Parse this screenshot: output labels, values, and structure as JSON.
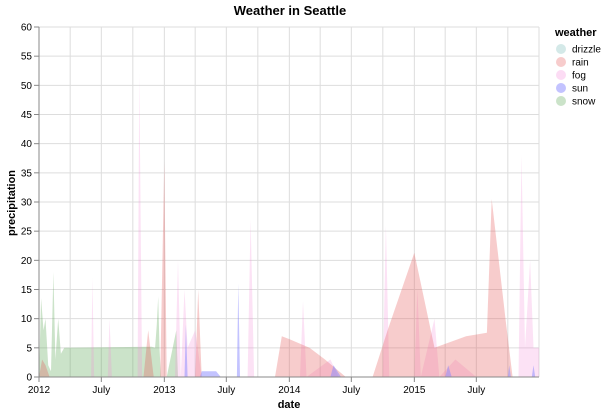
{
  "chart_data": {
    "type": "area",
    "title": "Weather in Seattle",
    "xlabel": "date",
    "ylabel": "precipitation",
    "ylim": [
      0,
      60
    ],
    "yticks": [
      0,
      5,
      10,
      15,
      20,
      25,
      30,
      35,
      40,
      45,
      50,
      55,
      60
    ],
    "xlim": [
      "2012-01-01",
      "2015-12-31"
    ],
    "xticks": [
      {
        "date": "2012-01-01",
        "label": "2012"
      },
      {
        "date": "2012-07-01",
        "label": "July"
      },
      {
        "date": "2013-01-01",
        "label": "2013"
      },
      {
        "date": "2013-07-01",
        "label": "July"
      },
      {
        "date": "2014-01-01",
        "label": "2014"
      },
      {
        "date": "2014-07-01",
        "label": "July"
      },
      {
        "date": "2015-01-01",
        "label": "2015"
      },
      {
        "date": "2015-07-01",
        "label": "July"
      }
    ],
    "grid": true,
    "legend_title": "weather",
    "legend_position": "right",
    "series": [
      {
        "name": "snow",
        "color": "#54a24b",
        "opacity": 0.3,
        "points": [
          [
            "2012-01-01",
            0
          ],
          [
            "2012-01-07",
            13.5
          ],
          [
            "2012-01-14",
            8
          ],
          [
            "2012-01-20",
            10
          ],
          [
            "2012-01-28",
            2
          ],
          [
            "2012-02-05",
            1
          ],
          [
            "2012-02-12",
            18
          ],
          [
            "2012-02-18",
            3
          ],
          [
            "2012-02-26",
            10
          ],
          [
            "2012-03-05",
            4
          ],
          [
            "2012-03-15",
            5
          ],
          [
            "2012-11-25",
            5.2
          ],
          [
            "2012-12-05",
            5
          ],
          [
            "2012-12-10",
            9
          ],
          [
            "2012-12-14",
            13.8
          ],
          [
            "2012-12-18",
            5
          ],
          [
            "2012-12-22",
            0
          ],
          [
            "2013-01-08",
            0
          ],
          [
            "2013-02-05",
            8
          ],
          [
            "2013-02-10",
            0
          ]
        ]
      },
      {
        "name": "fog",
        "color": "#f58bd9",
        "opacity": 0.25,
        "points": [
          [
            "2012-06-01",
            0
          ],
          [
            "2012-06-05",
            17
          ],
          [
            "2012-06-10",
            0
          ],
          [
            "2012-07-20",
            0
          ],
          [
            "2012-07-25",
            10
          ],
          [
            "2012-08-01",
            0
          ],
          [
            "2012-10-15",
            0
          ],
          [
            "2012-10-20",
            52
          ],
          [
            "2012-10-28",
            0
          ],
          [
            "2013-02-01",
            0
          ],
          [
            "2013-02-10",
            20
          ],
          [
            "2013-02-18",
            0
          ],
          [
            "2013-03-01",
            15
          ],
          [
            "2013-03-10",
            5
          ],
          [
            "2013-04-01",
            8
          ],
          [
            "2013-04-20",
            0
          ],
          [
            "2013-09-01",
            0
          ],
          [
            "2013-09-10",
            27
          ],
          [
            "2013-09-20",
            0
          ],
          [
            "2014-02-01",
            0
          ],
          [
            "2014-02-10",
            13
          ],
          [
            "2014-02-20",
            0
          ],
          [
            "2014-05-01",
            3
          ],
          [
            "2014-05-25",
            0
          ],
          [
            "2014-10-01",
            0
          ],
          [
            "2014-10-10",
            26
          ],
          [
            "2014-10-20",
            0
          ],
          [
            "2015-01-01",
            0
          ],
          [
            "2015-01-10",
            15
          ],
          [
            "2015-01-20",
            0
          ],
          [
            "2015-03-01",
            10
          ],
          [
            "2015-03-15",
            0
          ],
          [
            "2015-05-01",
            3
          ],
          [
            "2015-07-01",
            0
          ],
          [
            "2015-11-01",
            0
          ],
          [
            "2015-11-10",
            38
          ],
          [
            "2015-11-20",
            5
          ],
          [
            "2015-12-05",
            20
          ],
          [
            "2015-12-15",
            5
          ],
          [
            "2015-12-31",
            5
          ]
        ]
      },
      {
        "name": "rain",
        "color": "#e45756",
        "opacity": 0.3,
        "points": [
          [
            "2012-01-01",
            0
          ],
          [
            "2012-01-10",
            3
          ],
          [
            "2012-01-20",
            2
          ],
          [
            "2012-02-01",
            0
          ],
          [
            "2012-11-01",
            0
          ],
          [
            "2012-11-15",
            8
          ],
          [
            "2012-12-01",
            0
          ],
          [
            "2012-12-20",
            0
          ],
          [
            "2013-01-01",
            37
          ],
          [
            "2013-01-08",
            0
          ],
          [
            "2013-04-01",
            0
          ],
          [
            "2013-04-10",
            15
          ],
          [
            "2013-04-20",
            0
          ],
          [
            "2013-11-20",
            0
          ],
          [
            "2013-12-10",
            7
          ],
          [
            "2014-01-01",
            6.5
          ],
          [
            "2014-03-01",
            5
          ],
          [
            "2014-04-15",
            3
          ],
          [
            "2014-06-15",
            0
          ],
          [
            "2014-09-01",
            0
          ],
          [
            "2014-10-15",
            8
          ],
          [
            "2015-01-01",
            21.3
          ],
          [
            "2015-03-01",
            5
          ],
          [
            "2015-06-01",
            7
          ],
          [
            "2015-08-01",
            7.6
          ],
          [
            "2015-08-15",
            30.5
          ],
          [
            "2015-09-25",
            9.5
          ],
          [
            "2015-10-15",
            0
          ]
        ]
      },
      {
        "name": "sun",
        "color": "#8888ff",
        "opacity": 0.5,
        "points": [
          [
            "2013-03-01",
            0
          ],
          [
            "2013-03-05",
            9
          ],
          [
            "2013-03-10",
            0
          ],
          [
            "2013-04-15",
            0
          ],
          [
            "2013-04-20",
            1
          ],
          [
            "2013-06-01",
            1
          ],
          [
            "2013-06-15",
            0
          ],
          [
            "2013-08-01",
            0
          ],
          [
            "2013-08-05",
            16
          ],
          [
            "2013-08-10",
            0
          ],
          [
            "2014-05-01",
            0
          ],
          [
            "2014-05-10",
            2
          ],
          [
            "2014-06-01",
            0
          ],
          [
            "2015-04-01",
            0
          ],
          [
            "2015-04-10",
            2
          ],
          [
            "2015-04-20",
            0
          ],
          [
            "2015-10-01",
            0
          ],
          [
            "2015-10-05",
            2
          ],
          [
            "2015-10-10",
            0
          ],
          [
            "2015-12-10",
            0
          ],
          [
            "2015-12-15",
            2
          ],
          [
            "2015-12-20",
            0
          ]
        ]
      },
      {
        "name": "drizzle",
        "color": "#72b7b2",
        "opacity": 0.3,
        "points": [
          [
            "2012-01-01",
            0
          ],
          [
            "2012-01-02",
            1
          ],
          [
            "2012-01-04",
            0
          ]
        ]
      }
    ],
    "legend_order": [
      "drizzle",
      "rain",
      "fog",
      "sun",
      "snow"
    ]
  }
}
